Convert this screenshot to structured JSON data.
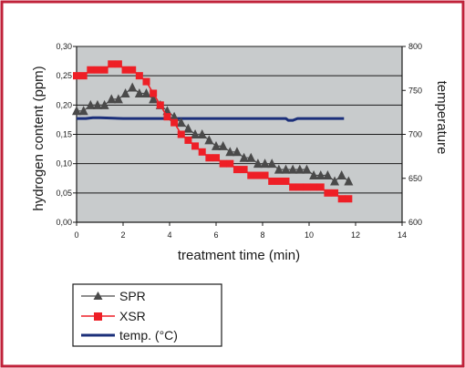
{
  "colors": {
    "frame": "#c0223a",
    "plot_bg": "#c8cbcc",
    "grid": "#1a1a1a",
    "spr": "#4a4a4a",
    "xsr": "#ee1f26",
    "temp": "#1b2f7a"
  },
  "chart_data": {
    "type": "line",
    "title": "",
    "xlabel": "treatment time (min)",
    "ylabel": "hydrogen content (ppm)",
    "y2label": "temperature",
    "xlim": [
      0,
      14
    ],
    "ylim": [
      0,
      0.3
    ],
    "y2lim": [
      600,
      800
    ],
    "x_ticks": [
      "0",
      "2",
      "4",
      "6",
      "8",
      "10",
      "12",
      "14"
    ],
    "y_ticks": [
      "0,00",
      "0,05",
      "0,10",
      "0,15",
      "0,20",
      "0,25",
      "0,30"
    ],
    "y2_ticks": [
      "600",
      "650",
      "700",
      "750",
      "800"
    ],
    "grid": "horizontal",
    "legend_position": "below",
    "series": [
      {
        "name": "SPR",
        "marker": "triangle",
        "axis": "left",
        "x": [
          0.0,
          0.3,
          0.6,
          0.9,
          1.2,
          1.5,
          1.8,
          2.1,
          2.4,
          2.7,
          3.0,
          3.3,
          3.6,
          3.9,
          4.2,
          4.5,
          4.8,
          5.1,
          5.4,
          5.7,
          6.0,
          6.3,
          6.6,
          6.9,
          7.2,
          7.5,
          7.8,
          8.1,
          8.4,
          8.7,
          9.0,
          9.3,
          9.6,
          9.9,
          10.2,
          10.5,
          10.8,
          11.1,
          11.4,
          11.7
        ],
        "values": [
          0.19,
          0.19,
          0.2,
          0.2,
          0.2,
          0.21,
          0.21,
          0.22,
          0.23,
          0.22,
          0.22,
          0.21,
          0.2,
          0.19,
          0.18,
          0.17,
          0.16,
          0.15,
          0.15,
          0.14,
          0.13,
          0.13,
          0.12,
          0.12,
          0.11,
          0.11,
          0.1,
          0.1,
          0.1,
          0.09,
          0.09,
          0.09,
          0.09,
          0.09,
          0.08,
          0.08,
          0.08,
          0.07,
          0.08,
          0.07
        ]
      },
      {
        "name": "XSR",
        "marker": "square",
        "axis": "left",
        "x": [
          0.0,
          0.3,
          0.6,
          0.9,
          1.2,
          1.5,
          1.8,
          2.1,
          2.4,
          2.7,
          3.0,
          3.3,
          3.6,
          3.9,
          4.2,
          4.5,
          4.8,
          5.1,
          5.4,
          5.7,
          6.0,
          6.3,
          6.6,
          6.9,
          7.2,
          7.5,
          7.8,
          8.1,
          8.4,
          8.7,
          9.0,
          9.3,
          9.6,
          9.9,
          10.2,
          10.5,
          10.8,
          11.1,
          11.4,
          11.7
        ],
        "values": [
          0.25,
          0.25,
          0.26,
          0.26,
          0.26,
          0.27,
          0.27,
          0.26,
          0.26,
          0.25,
          0.24,
          0.22,
          0.2,
          0.18,
          0.17,
          0.15,
          0.14,
          0.13,
          0.12,
          0.11,
          0.11,
          0.1,
          0.1,
          0.09,
          0.09,
          0.08,
          0.08,
          0.08,
          0.07,
          0.07,
          0.07,
          0.06,
          0.06,
          0.06,
          0.06,
          0.06,
          0.05,
          0.05,
          0.04,
          0.04
        ]
      },
      {
        "name": "temp. (°C)",
        "marker": "none",
        "axis": "right",
        "x": [
          0.0,
          0.4,
          0.7,
          1.0,
          2.0,
          3.0,
          4.0,
          5.0,
          6.0,
          7.0,
          8.0,
          9.0,
          9.1,
          9.3,
          9.5,
          10.0,
          11.0,
          11.5
        ],
        "values": [
          718,
          718,
          719,
          719,
          718,
          718,
          718,
          718,
          718,
          718,
          718,
          718,
          716,
          716,
          718,
          718,
          718,
          718
        ]
      }
    ]
  }
}
